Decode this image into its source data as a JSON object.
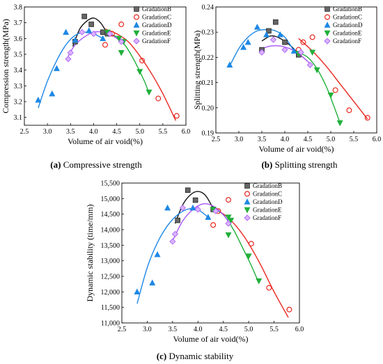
{
  "chart_data": [
    {
      "type": "scatter",
      "caption_label": "(a)",
      "caption_text": " Compressive strength",
      "xlabel": "Volume of air void(%)",
      "ylabel": "Compression strength(MPa)",
      "xlim": [
        2.5,
        6.0
      ],
      "ylim": [
        3.05,
        3.8
      ],
      "xticks": [
        2.5,
        3.0,
        3.5,
        4.0,
        4.5,
        5.0,
        5.5,
        6.0
      ],
      "yticks": [
        3.1,
        3.2,
        3.3,
        3.4,
        3.5,
        3.6,
        3.7,
        3.8
      ],
      "tick_decimals_x": 1,
      "tick_decimals_y": 1,
      "legend_position": "top-right",
      "series": [
        {
          "name": "GradationB",
          "marker": "square",
          "color": "#3a3a3a",
          "points": [
            [
              3.6,
              3.58
            ],
            [
              3.8,
              3.74
            ],
            [
              3.95,
              3.69
            ],
            [
              4.2,
              3.64
            ],
            [
              4.3,
              3.63
            ]
          ],
          "fit": [
            [
              3.55,
              3.55
            ],
            [
              3.7,
              3.66
            ],
            [
              3.85,
              3.71
            ],
            [
              4.0,
              3.73
            ],
            [
              4.15,
              3.7
            ],
            [
              4.3,
              3.63
            ]
          ]
        },
        {
          "name": "GradationC",
          "marker": "circle",
          "color": "#e8271f",
          "points": [
            [
              4.25,
              3.56
            ],
            [
              4.4,
              3.63
            ],
            [
              4.6,
              3.69
            ],
            [
              5.05,
              3.46
            ],
            [
              5.4,
              3.22
            ],
            [
              5.8,
              3.11
            ]
          ],
          "fit": [
            [
              4.25,
              3.66
            ],
            [
              4.5,
              3.63
            ],
            [
              4.75,
              3.58
            ],
            [
              5.0,
              3.49
            ],
            [
              5.25,
              3.38
            ],
            [
              5.5,
              3.25
            ],
            [
              5.78,
              3.08
            ]
          ]
        },
        {
          "name": "GradationD",
          "marker": "triangle-up",
          "color": "#1e88e5",
          "points": [
            [
              2.8,
              3.21
            ],
            [
              3.1,
              3.25
            ],
            [
              3.2,
              3.41
            ],
            [
              3.4,
              3.64
            ],
            [
              3.6,
              3.59
            ],
            [
              3.9,
              3.65
            ],
            [
              4.2,
              3.6
            ]
          ],
          "fit": [
            [
              2.8,
              3.16
            ],
            [
              3.0,
              3.33
            ],
            [
              3.2,
              3.46
            ],
            [
              3.4,
              3.56
            ],
            [
              3.6,
              3.62
            ],
            [
              3.8,
              3.64
            ],
            [
              4.0,
              3.63
            ],
            [
              4.2,
              3.6
            ]
          ]
        },
        {
          "name": "GradationE",
          "marker": "triangle-down",
          "color": "#20b03a",
          "points": [
            [
              4.3,
              3.64
            ],
            [
              4.55,
              3.6
            ],
            [
              4.6,
              3.51
            ],
            [
              4.65,
              3.58
            ],
            [
              5.0,
              3.39
            ],
            [
              5.2,
              3.26
            ]
          ],
          "fit": [
            [
              4.3,
              3.63
            ],
            [
              4.5,
              3.61
            ],
            [
              4.7,
              3.55
            ],
            [
              4.9,
              3.45
            ],
            [
              5.1,
              3.33
            ],
            [
              5.2,
              3.25
            ]
          ]
        },
        {
          "name": "GradationF",
          "marker": "diamond",
          "color": "#a855f7",
          "points": [
            [
              3.45,
              3.47
            ],
            [
              3.5,
              3.51
            ],
            [
              3.75,
              3.64
            ],
            [
              4.0,
              3.63
            ],
            [
              4.35,
              3.63
            ],
            [
              4.6,
              3.58
            ]
          ],
          "fit": [
            [
              3.45,
              3.49
            ],
            [
              3.6,
              3.56
            ],
            [
              3.8,
              3.61
            ],
            [
              4.0,
              3.64
            ],
            [
              4.2,
              3.64
            ],
            [
              4.4,
              3.62
            ],
            [
              4.6,
              3.58
            ]
          ]
        }
      ]
    },
    {
      "type": "scatter",
      "caption_label": "(b)",
      "caption_text": " Splitting strength",
      "xlabel": "Volume of air void(%)",
      "ylabel": "Splitting strength(MPa)",
      "xlim": [
        2.5,
        6.0
      ],
      "ylim": [
        0.19,
        0.24
      ],
      "xticks": [
        2.5,
        3.0,
        3.5,
        4.0,
        4.5,
        5.0,
        5.5,
        6.0
      ],
      "yticks": [
        0.19,
        0.2,
        0.21,
        0.22,
        0.23,
        0.24
      ],
      "tick_decimals_x": 1,
      "tick_decimals_y": 2,
      "legend_position": "top-right",
      "series": [
        {
          "name": "GradationB",
          "marker": "square",
          "color": "#3a3a3a",
          "points": [
            [
              3.5,
              0.223
            ],
            [
              3.65,
              0.2305
            ],
            [
              3.8,
              0.234
            ],
            [
              4.0,
              0.226
            ],
            [
              4.3,
              0.221
            ]
          ],
          "fit": [
            [
              3.5,
              0.2265
            ],
            [
              3.7,
              0.2285
            ],
            [
              3.9,
              0.2275
            ],
            [
              4.1,
              0.225
            ],
            [
              4.3,
              0.2215
            ]
          ]
        },
        {
          "name": "GradationC",
          "marker": "circle",
          "color": "#e8271f",
          "points": [
            [
              4.3,
              0.223
            ],
            [
              4.4,
              0.226
            ],
            [
              4.6,
              0.228
            ],
            [
              5.1,
              0.207
            ],
            [
              5.4,
              0.199
            ],
            [
              5.8,
              0.196
            ]
          ],
          "fit": [
            [
              4.3,
              0.2275
            ],
            [
              4.6,
              0.2225
            ],
            [
              4.9,
              0.2165
            ],
            [
              5.2,
              0.2095
            ],
            [
              5.5,
              0.2025
            ],
            [
              5.8,
              0.1955
            ]
          ]
        },
        {
          "name": "GradationD",
          "marker": "triangle-up",
          "color": "#1e88e5",
          "points": [
            [
              2.8,
              0.217
            ],
            [
              3.1,
              0.224
            ],
            [
              3.2,
              0.226
            ],
            [
              3.4,
              0.232
            ],
            [
              3.6,
              0.229
            ],
            [
              3.9,
              0.229
            ],
            [
              4.2,
              0.2225
            ]
          ],
          "fit": [
            [
              2.8,
              0.2165
            ],
            [
              3.0,
              0.2235
            ],
            [
              3.2,
              0.228
            ],
            [
              3.4,
              0.2305
            ],
            [
              3.6,
              0.231
            ],
            [
              3.8,
              0.2305
            ],
            [
              4.0,
              0.228
            ],
            [
              4.2,
              0.2225
            ]
          ]
        },
        {
          "name": "GradationE",
          "marker": "triangle-down",
          "color": "#20b03a",
          "points": [
            [
              4.3,
              0.2215
            ],
            [
              4.6,
              0.222
            ],
            [
              4.7,
              0.215
            ],
            [
              5.0,
              0.205
            ],
            [
              5.2,
              0.194
            ]
          ],
          "fit": [
            [
              4.3,
              0.222
            ],
            [
              4.5,
              0.22
            ],
            [
              4.7,
              0.2155
            ],
            [
              4.9,
              0.2085
            ],
            [
              5.05,
              0.2015
            ],
            [
              5.2,
              0.194
            ]
          ]
        },
        {
          "name": "GradationF",
          "marker": "diamond",
          "color": "#a855f7",
          "points": [
            [
              3.5,
              0.222
            ],
            [
              3.75,
              0.227
            ],
            [
              4.0,
              0.223
            ],
            [
              4.35,
              0.222
            ],
            [
              4.55,
              0.217
            ]
          ],
          "fit": [
            [
              3.5,
              0.2235
            ],
            [
              3.7,
              0.2245
            ],
            [
              3.9,
              0.2245
            ],
            [
              4.1,
              0.2235
            ],
            [
              4.3,
              0.2215
            ],
            [
              4.55,
              0.2175
            ]
          ]
        }
      ]
    },
    {
      "type": "scatter",
      "caption_label": "(c)",
      "caption_text": " Dynamic stability",
      "xlabel": "Volume of air void(%)",
      "ylabel": "Dynamic stability (time/mm)",
      "xlim": [
        2.5,
        6.0
      ],
      "ylim": [
        11000,
        15500
      ],
      "xticks": [
        2.5,
        3.0,
        3.5,
        4.0,
        4.5,
        5.0,
        5.5,
        6.0
      ],
      "yticks": [
        11000,
        11500,
        12000,
        12500,
        13000,
        13500,
        14000,
        14500,
        15000,
        15500
      ],
      "tick_decimals_x": 1,
      "tick_decimals_y": 0,
      "tick_format_y": "thousands",
      "legend_position": "top-right",
      "series": [
        {
          "name": "GradationB",
          "marker": "square",
          "color": "#3a3a3a",
          "points": [
            [
              3.6,
              14300
            ],
            [
              3.8,
              15270
            ],
            [
              3.95,
              14950
            ],
            [
              4.3,
              14650
            ]
          ],
          "fit": [
            [
              3.55,
              14200
            ],
            [
              3.7,
              14800
            ],
            [
              3.85,
              15120
            ],
            [
              4.0,
              15230
            ],
            [
              4.15,
              15100
            ],
            [
              4.3,
              14680
            ]
          ]
        },
        {
          "name": "GradationC",
          "marker": "circle",
          "color": "#e8271f",
          "points": [
            [
              4.3,
              14150
            ],
            [
              4.4,
              14600
            ],
            [
              4.6,
              14960
            ],
            [
              5.05,
              13550
            ],
            [
              5.4,
              12130
            ],
            [
              5.8,
              11430
            ]
          ],
          "fit": [
            [
              4.3,
              14700
            ],
            [
              4.6,
              14380
            ],
            [
              4.9,
              13800
            ],
            [
              5.2,
              12980
            ],
            [
              5.5,
              12000
            ],
            [
              5.78,
              11180
            ]
          ]
        },
        {
          "name": "GradationD",
          "marker": "triangle-up",
          "color": "#1e88e5",
          "points": [
            [
              2.8,
              12000
            ],
            [
              3.1,
              12290
            ],
            [
              3.2,
              13200
            ],
            [
              3.4,
              14700
            ],
            [
              3.9,
              14700
            ],
            [
              4.2,
              14400
            ]
          ],
          "fit": [
            [
              2.8,
              11620
            ],
            [
              3.0,
              12780
            ],
            [
              3.2,
              13580
            ],
            [
              3.4,
              14130
            ],
            [
              3.6,
              14480
            ],
            [
              3.8,
              14660
            ],
            [
              4.0,
              14640
            ],
            [
              4.2,
              14400
            ]
          ]
        },
        {
          "name": "GradationE",
          "marker": "triangle-down",
          "color": "#20b03a",
          "points": [
            [
              4.3,
              14650
            ],
            [
              4.6,
              14400
            ],
            [
              4.65,
              14300
            ],
            [
              4.6,
              13830
            ],
            [
              5.0,
              13150
            ],
            [
              5.2,
              12350
            ]
          ],
          "fit": [
            [
              4.3,
              14700
            ],
            [
              4.5,
              14480
            ],
            [
              4.7,
              14000
            ],
            [
              4.9,
              13350
            ],
            [
              5.05,
              12850
            ],
            [
              5.2,
              12290
            ]
          ]
        },
        {
          "name": "GradationF",
          "marker": "diamond",
          "color": "#a855f7",
          "points": [
            [
              3.5,
              13620
            ],
            [
              3.55,
              13860
            ],
            [
              3.7,
              14700
            ],
            [
              4.0,
              14650
            ],
            [
              4.35,
              14600
            ],
            [
              4.6,
              14200
            ]
          ],
          "fit": [
            [
              3.5,
              13650
            ],
            [
              3.7,
              14280
            ],
            [
              3.9,
              14650
            ],
            [
              4.1,
              14830
            ],
            [
              4.3,
              14760
            ],
            [
              4.5,
              14480
            ],
            [
              4.6,
              14260
            ]
          ]
        }
      ]
    }
  ]
}
